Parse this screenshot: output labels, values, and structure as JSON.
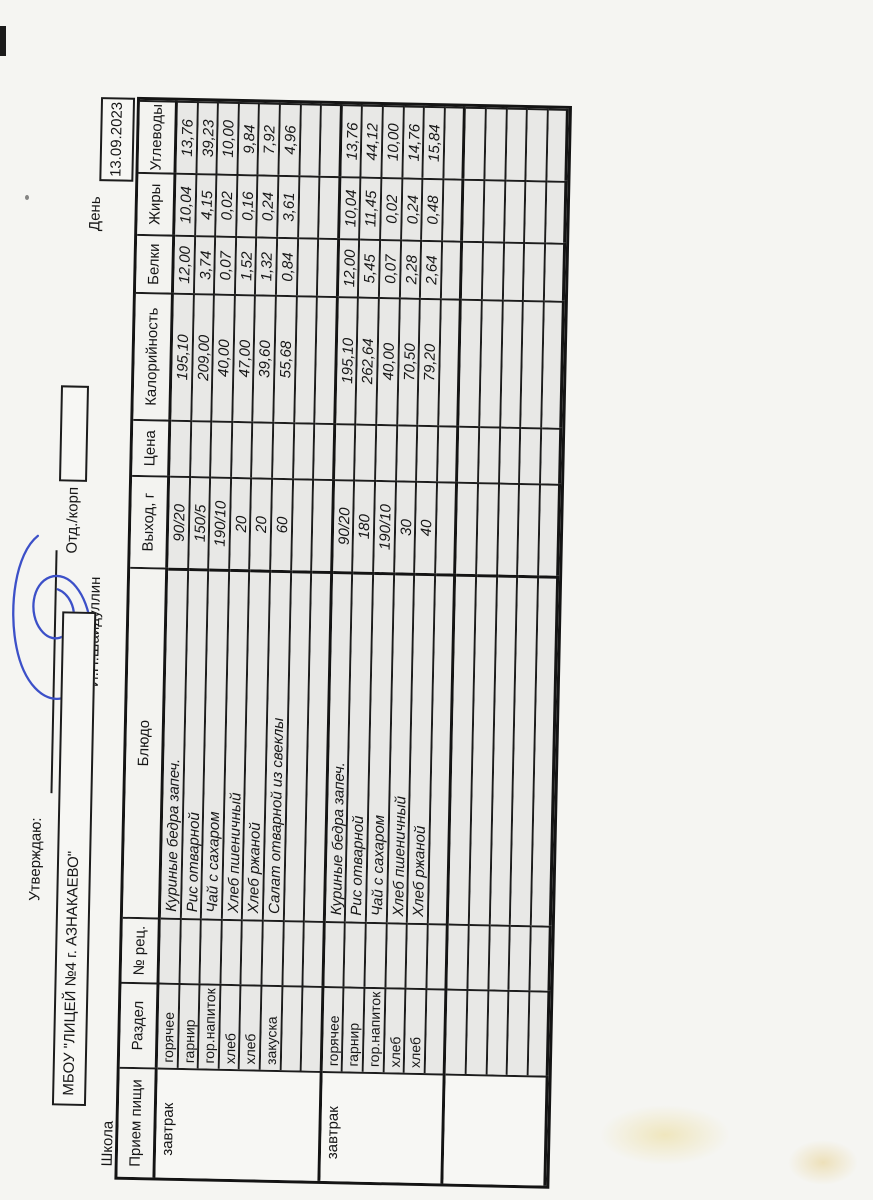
{
  "document": {
    "approve_label": "Утверждаю:",
    "approver_name": "И.Н.Шайдуллин",
    "school_label": "Школа",
    "school_name": "МБОУ \"ЛИЦЕЙ №4 г. АЗНАКАЕВО\"",
    "dept_label": "Отд./корп",
    "day_label": "День",
    "date_value": "13.09.2023",
    "signature_color": "#3c50c8"
  },
  "table": {
    "headers": [
      "Прием пищи",
      "Раздел",
      "№ рец.",
      "Блюдо",
      "Выход, г",
      "Цена",
      "Калорийность",
      "Белки",
      "Жиры",
      "Углеводы"
    ],
    "groups": [
      {
        "meal": "завтрак",
        "rows": [
          {
            "section": "горячее",
            "rec": "",
            "dish": "Куриные бедра запеч.",
            "out": "90/20",
            "price": "",
            "kcal": "195,10",
            "protein": "12,00",
            "fat": "10,04",
            "carbs": "13,76"
          },
          {
            "section": "гарнир",
            "rec": "",
            "dish": "Рис отварной",
            "out": "150/5",
            "price": "",
            "kcal": "209,00",
            "protein": "3,74",
            "fat": "4,15",
            "carbs": "39,23"
          },
          {
            "section": "гор.напиток",
            "rec": "",
            "dish": "Чай с сахаром",
            "out": "190/10",
            "price": "",
            "kcal": "40,00",
            "protein": "0,07",
            "fat": "0,02",
            "carbs": "10,00"
          },
          {
            "section": "хлеб",
            "rec": "",
            "dish": "Хлеб пшеничный",
            "out": "20",
            "price": "",
            "kcal": "47,00",
            "protein": "1,52",
            "fat": "0,16",
            "carbs": "9,84"
          },
          {
            "section": "хлеб",
            "rec": "",
            "dish": "Хлеб ржаной",
            "out": "20",
            "price": "",
            "kcal": "39,60",
            "protein": "1,32",
            "fat": "0,24",
            "carbs": "7,92"
          },
          {
            "section": "закуска",
            "rec": "",
            "dish": "Салат отварной из свеклы",
            "out": "60",
            "price": "",
            "kcal": "55,68",
            "protein": "0,84",
            "fat": "3,61",
            "carbs": "4,96"
          },
          {
            "section": "",
            "rec": "",
            "dish": "",
            "out": "",
            "price": "",
            "kcal": "",
            "protein": "",
            "fat": "",
            "carbs": ""
          },
          {
            "section": "",
            "rec": "",
            "dish": "",
            "out": "",
            "price": "",
            "kcal": "",
            "protein": "",
            "fat": "",
            "carbs": ""
          }
        ]
      },
      {
        "meal": "завтрак",
        "rows": [
          {
            "section": "горячее",
            "rec": "",
            "dish": "Куриные бедра запеч.",
            "out": "90/20",
            "price": "",
            "kcal": "195,10",
            "protein": "12,00",
            "fat": "10,04",
            "carbs": "13,76"
          },
          {
            "section": "гарнир",
            "rec": "",
            "dish": "Рис отварной",
            "out": "180",
            "price": "",
            "kcal": "262,64",
            "protein": "5,45",
            "fat": "11,45",
            "carbs": "44,12"
          },
          {
            "section": "гор.напиток",
            "rec": "",
            "dish": "Чай с сахаром",
            "out": "190/10",
            "price": "",
            "kcal": "40,00",
            "protein": "0,07",
            "fat": "0,02",
            "carbs": "10,00"
          },
          {
            "section": "хлеб",
            "rec": "",
            "dish": "Хлеб пшеничный",
            "out": "30",
            "price": "",
            "kcal": "70,50",
            "protein": "2,28",
            "fat": "0,24",
            "carbs": "14,76"
          },
          {
            "section": "хлеб",
            "rec": "",
            "dish": "Хлеб ржаной",
            "out": "40",
            "price": "",
            "kcal": "79,20",
            "protein": "2,64",
            "fat": "0,48",
            "carbs": "15,84"
          },
          {
            "section": "",
            "rec": "",
            "dish": "",
            "out": "",
            "price": "",
            "kcal": "",
            "protein": "",
            "fat": "",
            "carbs": ""
          }
        ]
      },
      {
        "meal": "",
        "rows": [
          {
            "section": "",
            "rec": "",
            "dish": "",
            "out": "",
            "price": "",
            "kcal": "",
            "protein": "",
            "fat": "",
            "carbs": ""
          },
          {
            "section": "",
            "rec": "",
            "dish": "",
            "out": "",
            "price": "",
            "kcal": "",
            "protein": "",
            "fat": "",
            "carbs": ""
          },
          {
            "section": "",
            "rec": "",
            "dish": "",
            "out": "",
            "price": "",
            "kcal": "",
            "protein": "",
            "fat": "",
            "carbs": ""
          },
          {
            "section": "",
            "rec": "",
            "dish": "",
            "out": "",
            "price": "",
            "kcal": "",
            "protein": "",
            "fat": "",
            "carbs": ""
          },
          {
            "section": "",
            "rec": "",
            "dish": "",
            "out": "",
            "price": "",
            "kcal": "",
            "protein": "",
            "fat": "",
            "carbs": ""
          }
        ]
      }
    ]
  }
}
